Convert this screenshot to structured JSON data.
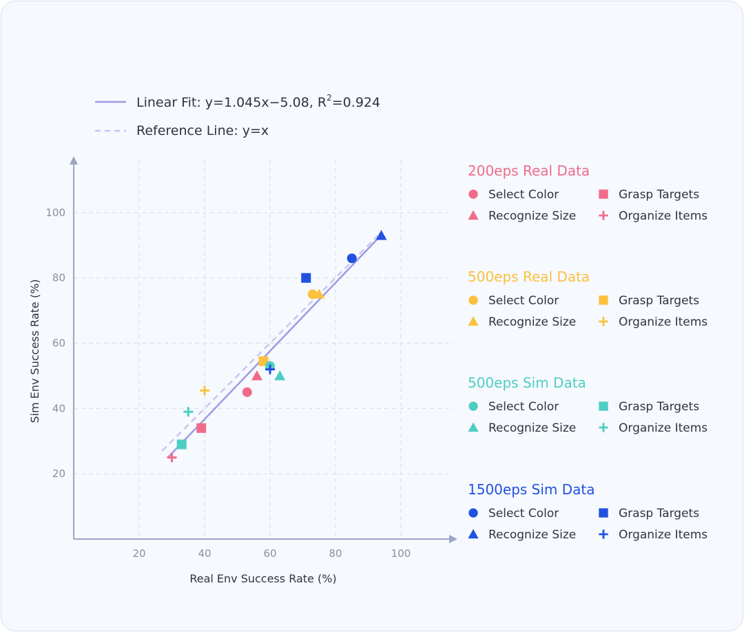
{
  "chart_data": {
    "type": "scatter",
    "xlabel": "Real Env Success Rate (%)",
    "ylabel": "Sim Env Success Rate (%)",
    "xlim": [
      0,
      116
    ],
    "ylim": [
      0,
      116
    ],
    "xticks": [
      20,
      40,
      60,
      80,
      100
    ],
    "yticks": [
      20,
      40,
      60,
      80,
      100
    ],
    "grid": true,
    "fit_legend": "Linear Fit: y=1.045x−5.08, R²=0.924",
    "fit_legend_parts": {
      "prefix": "Linear Fit: y=1.045x−5.08, R",
      "sup": "2",
      "suffix": "=0.924"
    },
    "ref_legend": "Reference Line: y=x",
    "fit": {
      "slope": 1.045,
      "intercept": -5.08,
      "r2": 0.924,
      "x_range": [
        29,
        93
      ],
      "color": "#9e9ae4"
    },
    "reference": {
      "x_range": [
        27,
        93
      ],
      "color": "#c8c6ef"
    },
    "task_names": [
      "Select Color",
      "Grasp Targets",
      "Recognize Size",
      "Organize Items"
    ],
    "task_markers": [
      "circle",
      "square",
      "triangle",
      "plus"
    ],
    "groups": [
      {
        "name": "200eps Real Data",
        "color": "#f06b8a",
        "points": [
          {
            "task": "Select Color",
            "x": 53,
            "y": 45
          },
          {
            "task": "Grasp Targets",
            "x": 39,
            "y": 34
          },
          {
            "task": "Recognize Size",
            "x": 56,
            "y": 50
          },
          {
            "task": "Organize Items",
            "x": 30,
            "y": 25
          }
        ]
      },
      {
        "name": "500eps Real Data",
        "color": "#fbc13f",
        "points": [
          {
            "task": "Select Color",
            "x": 73,
            "y": 75
          },
          {
            "task": "Grasp Targets",
            "x": 58,
            "y": 54.5
          },
          {
            "task": "Recognize Size",
            "x": 75,
            "y": 75
          },
          {
            "task": "Organize Items",
            "x": 40,
            "y": 45.5
          }
        ]
      },
      {
        "name": "500eps Sim Data",
        "color": "#4ecdc4",
        "points": [
          {
            "task": "Select Color",
            "x": 60,
            "y": 53
          },
          {
            "task": "Grasp Targets",
            "x": 33,
            "y": 29
          },
          {
            "task": "Recognize Size",
            "x": 63,
            "y": 50
          },
          {
            "task": "Organize Items",
            "x": 35,
            "y": 39
          }
        ]
      },
      {
        "name": "1500eps Sim Data",
        "color": "#2051e0",
        "points": [
          {
            "task": "Select Color",
            "x": 85,
            "y": 86
          },
          {
            "task": "Grasp Targets",
            "x": 71,
            "y": 80
          },
          {
            "task": "Recognize Size",
            "x": 94,
            "y": 93
          },
          {
            "task": "Organize Items",
            "x": 60,
            "y": 52
          }
        ]
      }
    ]
  }
}
